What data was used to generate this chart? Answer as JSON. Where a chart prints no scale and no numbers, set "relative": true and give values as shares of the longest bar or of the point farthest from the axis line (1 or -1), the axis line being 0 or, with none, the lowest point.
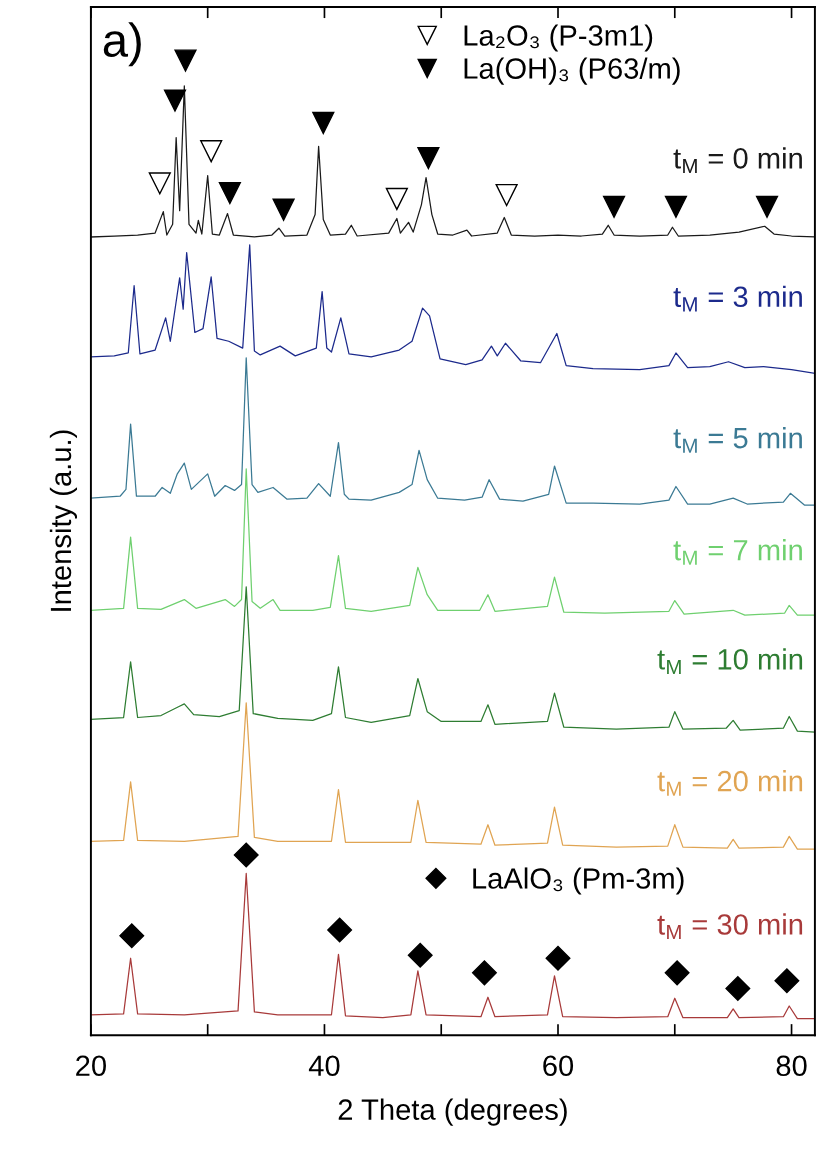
{
  "chart_data": {
    "type": "line",
    "title": "a)",
    "xlabel": "2 Theta (degrees)",
    "ylabel": "Intensity (a.u.)",
    "relative": true,
    "xlim": [
      20,
      82
    ],
    "xticks": [
      20,
      {
        "value": 30,
        "label": null
      },
      40,
      {
        "value": 50,
        "label": null
      },
      60,
      {
        "value": 70,
        "label": null
      },
      80
    ],
    "tick_labels": "x",
    "grid": false,
    "legend": "top",
    "marker": "none",
    "line_style": "solid",
    "series": [
      {
        "name": "t$_{M}$ = 0 min",
        "color": "#1a1a1a",
        "x": [
          20,
          22,
          24,
          25.5,
          26.2,
          26.5,
          27.0,
          27.3,
          27.6,
          28.0,
          28.4,
          29.0,
          29.2,
          29.5,
          30.0,
          30.4,
          31.0,
          31.7,
          32.2,
          34,
          35.5,
          36.1,
          36.6,
          38.5,
          39.2,
          39.5,
          39.9,
          40.5,
          41.8,
          42.3,
          42.8,
          45.5,
          46.2,
          46.5,
          47.2,
          47.6,
          48.3,
          48.7,
          49.2,
          49.7,
          51,
          52.2,
          52.6,
          54.8,
          55.4,
          56.0,
          58,
          60,
          62,
          63.8,
          64.3,
          64.8,
          67,
          69.4,
          69.8,
          70.3,
          73,
          75.5,
          77.7,
          78.5,
          80,
          82
        ],
        "values": [
          0.819,
          0.82,
          0.821,
          0.823,
          0.845,
          0.821,
          0.832,
          0.921,
          0.846,
          0.974,
          0.832,
          0.823,
          0.836,
          0.822,
          0.882,
          0.822,
          0.821,
          0.843,
          0.821,
          0.819,
          0.821,
          0.828,
          0.82,
          0.821,
          0.842,
          0.912,
          0.837,
          0.821,
          0.822,
          0.831,
          0.82,
          0.823,
          0.838,
          0.823,
          0.834,
          0.824,
          0.852,
          0.88,
          0.842,
          0.822,
          0.821,
          0.826,
          0.82,
          0.823,
          0.839,
          0.821,
          0.82,
          0.821,
          0.82,
          0.822,
          0.831,
          0.821,
          0.82,
          0.821,
          0.829,
          0.82,
          0.821,
          0.824,
          0.83,
          0.822,
          0.82,
          0.819
        ]
      },
      {
        "name": "t$_{M}$ = 3 min",
        "color": "#1c2a8c",
        "x": [
          20,
          22,
          23.2,
          23.7,
          24.2,
          25.5,
          26.4,
          26.8,
          27.6,
          27.9,
          28.2,
          28.9,
          29.6,
          30.3,
          30.8,
          31.8,
          33.0,
          33.6,
          34.0,
          34.5,
          36.2,
          37.5,
          39.3,
          39.8,
          40.2,
          40.6,
          41.4,
          42.1,
          44,
          46.4,
          47.5,
          48.4,
          49.0,
          49.9,
          52.1,
          53.5,
          54.3,
          54.8,
          55.5,
          56.8,
          58.5,
          59.9,
          60.7,
          63,
          67,
          69.5,
          70.1,
          71.1,
          73,
          74.6,
          76,
          77.6,
          80,
          82
        ],
        "values": [
          0.696,
          0.697,
          0.7,
          0.769,
          0.699,
          0.703,
          0.736,
          0.712,
          0.777,
          0.745,
          0.803,
          0.721,
          0.725,
          0.778,
          0.715,
          0.712,
          0.705,
          0.811,
          0.702,
          0.698,
          0.707,
          0.697,
          0.705,
          0.763,
          0.705,
          0.701,
          0.736,
          0.699,
          0.696,
          0.703,
          0.712,
          0.746,
          0.738,
          0.694,
          0.688,
          0.693,
          0.707,
          0.697,
          0.71,
          0.692,
          0.69,
          0.72,
          0.687,
          0.684,
          0.683,
          0.687,
          0.7,
          0.685,
          0.686,
          0.691,
          0.685,
          0.686,
          0.683,
          0.679
        ]
      },
      {
        "name": "t$_{M}$ = 5 min",
        "color": "#3b7a94",
        "x": [
          20,
          22.5,
          23.0,
          23.4,
          23.9,
          25.5,
          26.1,
          26.8,
          27.4,
          28.0,
          28.6,
          30.0,
          30.6,
          31.5,
          32.3,
          32.9,
          33.3,
          33.8,
          34.3,
          35.6,
          36.8,
          38.5,
          39.5,
          40.5,
          41.2,
          41.7,
          42.1,
          44,
          46.4,
          47.5,
          48.1,
          48.8,
          49.7,
          52,
          53.5,
          54.1,
          55.0,
          57,
          59.2,
          59.7,
          60.7,
          63,
          67,
          69.5,
          70.1,
          71.1,
          73,
          75.0,
          76.2,
          79.3,
          79.9,
          81.1,
          82
        ],
        "values": [
          0.551,
          0.553,
          0.56,
          0.627,
          0.553,
          0.553,
          0.562,
          0.556,
          0.576,
          0.587,
          0.56,
          0.576,
          0.553,
          0.564,
          0.559,
          0.565,
          0.695,
          0.565,
          0.557,
          0.562,
          0.55,
          0.551,
          0.566,
          0.553,
          0.608,
          0.555,
          0.55,
          0.549,
          0.557,
          0.565,
          0.6,
          0.57,
          0.551,
          0.549,
          0.552,
          0.57,
          0.55,
          0.548,
          0.555,
          0.584,
          0.546,
          0.546,
          0.545,
          0.549,
          0.563,
          0.545,
          0.545,
          0.551,
          0.545,
          0.547,
          0.556,
          0.544,
          0.544
        ]
      },
      {
        "name": "t$_{M}$ = 7 min",
        "color": "#6fd06f",
        "x": [
          20,
          22.8,
          23.4,
          24.0,
          26,
          28.0,
          29,
          31.5,
          32.3,
          32.9,
          33.3,
          33.8,
          34.5,
          35.6,
          36.2,
          39,
          40.5,
          41.2,
          41.8,
          44,
          47.3,
          48.0,
          48.8,
          49.7,
          53.3,
          54.0,
          54.6,
          59.1,
          59.7,
          60.5,
          64,
          69.5,
          70.0,
          70.8,
          75.0,
          76,
          79.4,
          79.8,
          80.5,
          82
        ],
        "values": [
          0.436,
          0.438,
          0.511,
          0.438,
          0.437,
          0.447,
          0.438,
          0.447,
          0.44,
          0.447,
          0.581,
          0.445,
          0.438,
          0.447,
          0.436,
          0.436,
          0.439,
          0.492,
          0.438,
          0.435,
          0.441,
          0.48,
          0.452,
          0.436,
          0.436,
          0.452,
          0.435,
          0.44,
          0.47,
          0.434,
          0.433,
          0.435,
          0.446,
          0.432,
          0.436,
          0.431,
          0.433,
          0.441,
          0.431,
          0.431
        ]
      },
      {
        "name": "t$_{M}$ = 10 min",
        "color": "#2e7d32",
        "x": [
          20,
          22.8,
          23.4,
          24.0,
          26,
          27.5,
          28.0,
          28.8,
          31,
          32.7,
          33.3,
          33.9,
          36,
          39,
          40.6,
          41.2,
          41.8,
          44,
          47.3,
          48.0,
          48.8,
          50,
          53.4,
          54.0,
          54.6,
          59.1,
          59.7,
          60.5,
          65,
          69.5,
          70.0,
          70.7,
          74.4,
          75.0,
          75.6,
          79.3,
          79.8,
          80.5,
          82
        ],
        "values": [
          0.324,
          0.326,
          0.383,
          0.326,
          0.328,
          0.337,
          0.34,
          0.329,
          0.327,
          0.333,
          0.46,
          0.33,
          0.325,
          0.323,
          0.33,
          0.378,
          0.326,
          0.321,
          0.328,
          0.366,
          0.332,
          0.322,
          0.322,
          0.339,
          0.319,
          0.322,
          0.351,
          0.316,
          0.314,
          0.316,
          0.332,
          0.314,
          0.315,
          0.323,
          0.313,
          0.315,
          0.327,
          0.312,
          0.311
        ]
      },
      {
        "name": "t$_{M}$ = 20 min",
        "color": "#e0a452",
        "x": [
          20,
          22.8,
          23.4,
          24.0,
          28,
          32.6,
          33.3,
          34.0,
          36,
          40.6,
          41.2,
          41.8,
          47.4,
          48.0,
          48.7,
          53.4,
          54.0,
          54.6,
          59.1,
          59.7,
          60.4,
          65,
          69.4,
          70.0,
          70.7,
          74.5,
          75.0,
          75.5,
          79.3,
          79.8,
          80.5,
          82
        ],
        "values": [
          0.199,
          0.2,
          0.26,
          0.2,
          0.199,
          0.204,
          0.341,
          0.203,
          0.199,
          0.199,
          0.252,
          0.198,
          0.198,
          0.241,
          0.198,
          0.196,
          0.216,
          0.195,
          0.197,
          0.234,
          0.195,
          0.193,
          0.194,
          0.216,
          0.193,
          0.192,
          0.201,
          0.192,
          0.193,
          0.204,
          0.191,
          0.191
        ]
      },
      {
        "name": "t$_{M}$ = 30 min",
        "color": "#a83a3a",
        "x": [
          20,
          22.8,
          23.4,
          24.0,
          28,
          32.6,
          33.3,
          34.0,
          36,
          40.6,
          41.2,
          41.8,
          45,
          47.4,
          48.0,
          48.7,
          53.4,
          54.0,
          54.6,
          59.1,
          59.7,
          60.4,
          65,
          69.4,
          70.0,
          70.7,
          74.5,
          75.0,
          75.5,
          79.3,
          79.8,
          80.5,
          82
        ],
        "values": [
          0.021,
          0.022,
          0.079,
          0.022,
          0.021,
          0.025,
          0.166,
          0.024,
          0.021,
          0.021,
          0.083,
          0.02,
          0.018,
          0.021,
          0.066,
          0.021,
          0.019,
          0.039,
          0.019,
          0.021,
          0.061,
          0.019,
          0.018,
          0.019,
          0.038,
          0.018,
          0.018,
          0.027,
          0.018,
          0.019,
          0.03,
          0.017,
          0.017
        ]
      },
      {
        "type": "scatter",
        "name": "La₂O₃ (P-3m1)",
        "color": "#ffffff",
        "marker": "triangle",
        "x": [
          25.9,
          30.3,
          46.2,
          55.6
        ],
        "values": [
          0.874,
          0.907,
          0.858,
          0.862
        ]
      },
      {
        "type": "scatter",
        "name": "La(OH)₃ (P63/m)",
        "color": "#000000",
        "marker": "triangle",
        "x": [
          27.2,
          28.1,
          31.9,
          36.5,
          39.9,
          48.9,
          64.8,
          70.1,
          77.9
        ],
        "values": [
          0.959,
          1.0,
          0.864,
          0.847,
          0.936,
          0.9,
          0.85,
          0.85,
          0.85
        ]
      },
      {
        "type": "scatter",
        "name": "LaAlO₃ (Pm-3m)",
        "color": "#000000",
        "marker": "diamond",
        "x": [
          23.5,
          33.3,
          41.3,
          48.2,
          53.7,
          60.0,
          70.2,
          75.4,
          79.6
        ],
        "values": [
          0.102,
          0.185,
          0.108,
          0.082,
          0.064,
          0.079,
          0.064,
          0.048,
          0.056
        ]
      }
    ]
  }
}
